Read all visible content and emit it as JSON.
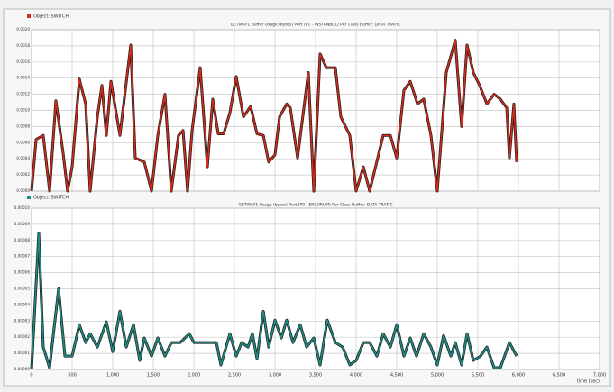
{
  "chart_data": [
    {
      "type": "line",
      "legend": "Object: SWITCH",
      "title": "GETWAY1 Buffer Usage (bytes) Port (P1 - INSTANBUL) Per Class Buffer: DATA TRAFIC",
      "xlim": [
        0,
        7000
      ],
      "ylim": [
        0,
        0.002
      ],
      "yticks": [
        {
          "value": 0,
          "label": "0.0000"
        },
        {
          "value": 0.0002,
          "label": "0.0002"
        },
        {
          "value": 0.0004,
          "label": "0.0004"
        },
        {
          "value": 0.0006,
          "label": "0.0006"
        },
        {
          "value": 0.0008,
          "label": "0.0008"
        },
        {
          "value": 0.001,
          "label": "0.0010"
        },
        {
          "value": 0.0012,
          "label": "0.0012"
        },
        {
          "value": 0.0014,
          "label": "0.0014"
        },
        {
          "value": 0.0016,
          "label": "0.0016"
        },
        {
          "value": 0.0018,
          "label": "0.0018"
        },
        {
          "value": 0.002,
          "label": "0.0020"
        }
      ],
      "grid": true,
      "series": [
        {
          "name": "Object: SWITCH",
          "color": "#d42a1a",
          "x": [
            0,
            56,
            144,
            222,
            300,
            389,
            444,
            500,
            589,
            667,
            722,
            811,
            867,
            922,
            978,
            1089,
            1222,
            1278,
            1389,
            1478,
            1556,
            1644,
            1722,
            1811,
            1867,
            1922,
            1978,
            2078,
            2167,
            2233,
            2300,
            2367,
            2444,
            2522,
            2611,
            2700,
            2778,
            2856,
            2922,
            3000,
            3056,
            3144,
            3189,
            3278,
            3411,
            3478,
            3556,
            3633,
            3744,
            3811,
            3922,
            4000,
            4089,
            4167,
            4333,
            4422,
            4500,
            4589,
            4667,
            4756,
            4833,
            4922,
            5000,
            5111,
            5222,
            5300,
            5367,
            5444,
            5522,
            5611,
            5700,
            5778,
            5856,
            5889,
            5944,
            5978
          ],
          "values": [
            0,
            0.00064,
            0.00069,
            0,
            0.00112,
            0.00047,
            0,
            0.0003,
            0.00139,
            0.00108,
            0,
            0.00092,
            0.00131,
            0.00069,
            0.00136,
            0.00069,
            0.00181,
            0.00041,
            0.00036,
            0,
            0.00069,
            0.0012,
            0,
            0.00069,
            0.00075,
            0,
            0.00075,
            0.00153,
            0.0003,
            0.00114,
            0.00071,
            0.00071,
            0.00097,
            0.00142,
            0.00092,
            0.00105,
            0.00071,
            0.00069,
            0.00036,
            0.00045,
            0.00092,
            0.00108,
            0.00103,
            0.00041,
            0.00147,
            0,
            0.0017,
            0.00153,
            0.00153,
            0.00092,
            0.00069,
            0,
            0.0003,
            0,
            0.00069,
            0.00069,
            0.00041,
            0.00125,
            0.00136,
            0.00108,
            0.00114,
            0.00069,
            0,
            0.00147,
            0.00187,
            0.0008,
            0.00181,
            0.00147,
            0.00131,
            0.00108,
            0.0012,
            0.00114,
            0.00103,
            0.00041,
            0.00108,
            0.00036
          ]
        }
      ]
    },
    {
      "type": "line",
      "legend": "Object: SWITCH",
      "title": "GETWAY1 Usage (bytes) Port (P0 - ERZURUM) Per Class Buffer: DATA TRAFIC",
      "xlabel": "time (sec)",
      "xlim": [
        0,
        7000
      ],
      "xticks": [
        0,
        500,
        {
          "value": 1000,
          "label": "1,000"
        },
        {
          "value": 1500,
          "label": "1,500"
        },
        {
          "value": 2000,
          "label": "2,000"
        },
        {
          "value": 2500,
          "label": "2,500"
        },
        {
          "value": 3000,
          "label": "3,000"
        },
        {
          "value": 3500,
          "label": "3,500"
        },
        {
          "value": 4000,
          "label": "4,000"
        },
        {
          "value": 4500,
          "label": "4,500"
        },
        {
          "value": 5000,
          "label": "5,000"
        },
        {
          "value": 5500,
          "label": "5,500"
        },
        {
          "value": 6000,
          "label": "6,000"
        },
        {
          "value": 6500,
          "label": "6,500"
        },
        {
          "value": 7000,
          "label": "7,000"
        }
      ],
      "ylim": [
        0,
        0.0001
      ],
      "yticks": [
        {
          "value": 0,
          "label": "0.00000"
        },
        {
          "value": 1e-05,
          "label": "0.00001"
        },
        {
          "value": 2e-05,
          "label": "0.00002"
        },
        {
          "value": 3e-05,
          "label": "0.00003"
        },
        {
          "value": 4e-05,
          "label": "0.00004"
        },
        {
          "value": 5e-05,
          "label": "0.00005"
        },
        {
          "value": 6e-05,
          "label": "0.00006"
        },
        {
          "value": 7e-05,
          "label": "0.00007"
        },
        {
          "value": 8e-05,
          "label": "0.00008"
        },
        {
          "value": 9e-05,
          "label": "0.00009"
        },
        {
          "value": 0.0001,
          "label": "0.00010"
        }
      ],
      "grid": true,
      "series": [
        {
          "name": "Object: SWITCH",
          "color": "#1e8c84",
          "x": [
            0,
            89,
            144,
            222,
            333,
            411,
            500,
            589,
            667,
            722,
            811,
            922,
            1000,
            1089,
            1167,
            1256,
            1333,
            1389,
            1478,
            1556,
            1644,
            1722,
            1833,
            1944,
            2000,
            2278,
            2333,
            2444,
            2522,
            2589,
            2667,
            2722,
            2778,
            2856,
            2922,
            3000,
            3078,
            3144,
            3222,
            3311,
            3389,
            3478,
            3556,
            3644,
            3744,
            3833,
            3922,
            4000,
            4089,
            4167,
            4256,
            4333,
            4422,
            4500,
            4589,
            4667,
            4744,
            4833,
            4922,
            5000,
            5078,
            5167,
            5222,
            5300,
            5367,
            5444,
            5533,
            5611,
            5700,
            5778,
            5889,
            5978
          ],
          "values": [
            0,
            8.45e-05,
            1.39e-05,
            1.1e-06,
            5e-05,
            8.3e-06,
            8.3e-06,
            2.78e-05,
            1.67e-05,
            2.22e-05,
            1.39e-05,
            2.95e-05,
            1.11e-05,
            3.61e-05,
            1.39e-05,
            2.78e-05,
            5.6e-06,
            1.95e-05,
            8.3e-06,
            1.95e-05,
            8.3e-06,
            1.67e-05,
            1.67e-05,
            2.22e-05,
            1.67e-05,
            1.67e-05,
            2.8e-06,
            2.22e-05,
            8.3e-06,
            1.67e-05,
            1.39e-05,
            2.22e-05,
            6.7e-06,
            3.61e-05,
            1.39e-05,
            3.06e-05,
            1.95e-05,
            3.06e-05,
            1.67e-05,
            2.78e-05,
            1.39e-05,
            1.95e-05,
            2.8e-06,
            3.06e-05,
            1.67e-05,
            1.39e-05,
            2.8e-06,
            5.6e-06,
            1.67e-05,
            1.67e-05,
            8.3e-06,
            2.22e-05,
            1.39e-05,
            2.78e-05,
            8.3e-06,
            1.95e-05,
            8.3e-06,
            2.22e-05,
            1.39e-05,
            2.8e-06,
            2.11e-05,
            8.3e-06,
            1.67e-05,
            2.8e-06,
            2.22e-05,
            5.6e-06,
            8.3e-06,
            1.39e-05,
            1.1e-06,
            1.1e-06,
            1.67e-05,
            8.3e-06
          ]
        }
      ]
    }
  ]
}
